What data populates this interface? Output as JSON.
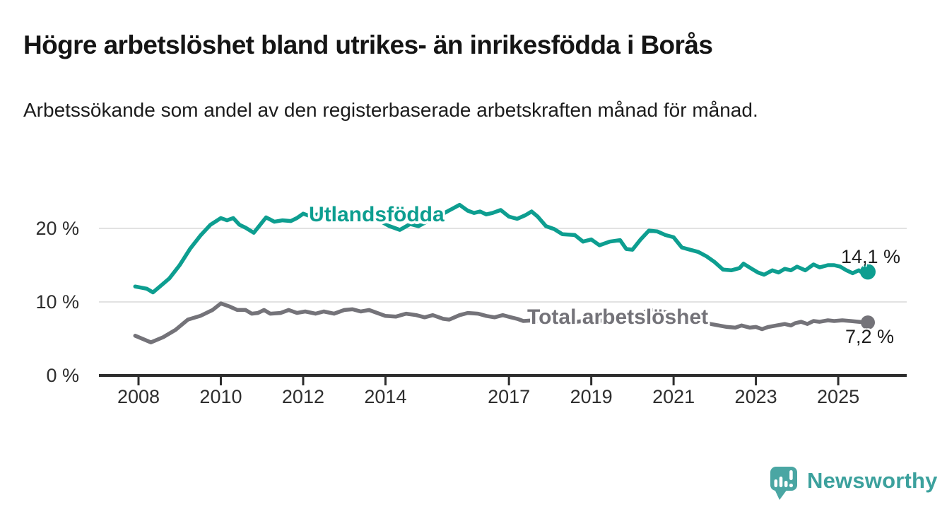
{
  "header": {
    "title": "Högre arbetslöshet bland utrikes- än inrikesfödda i Borås",
    "subtitle": "Arbetssökande som andel av den registerbaserade arbetskraften månad för månad."
  },
  "colors": {
    "utlandsfodda_line": "#0d9e90",
    "total_line": "#747379",
    "axis": "#2d2d2d",
    "grid": "#e2e2e2",
    "title_text": "#151515",
    "tick_text": "#2e2e2e",
    "logo_teal": "#4aa6a3",
    "brand_text": "#3ca19d"
  },
  "chart_data": {
    "type": "line",
    "title": "Högre arbetslöshet bland utrikes- än inrikesfödda i Borås",
    "subtitle": "Arbetssökande som andel av den registerbaserade arbetskraften månad för månad.",
    "unit": "%",
    "xlabel": "",
    "ylabel": "",
    "grid": "horizontal",
    "xlim": [
      2007.9,
      2026.6
    ],
    "ylim": [
      0,
      25
    ],
    "y_ticks": [
      {
        "value": 0,
        "label": "0 %"
      },
      {
        "value": 10,
        "label": "10 %"
      },
      {
        "value": 20,
        "label": "20 %"
      }
    ],
    "x_ticks": [
      {
        "value": 2008,
        "label": "2008"
      },
      {
        "value": 2010,
        "label": "2010"
      },
      {
        "value": 2012,
        "label": "2012"
      },
      {
        "value": 2014,
        "label": "2014"
      },
      {
        "value": 2017,
        "label": "2017"
      },
      {
        "value": 2019,
        "label": "2019"
      },
      {
        "value": 2021,
        "label": "2021"
      },
      {
        "value": 2023,
        "label": "2023"
      },
      {
        "value": 2025,
        "label": "2025"
      }
    ],
    "series": [
      {
        "name": "Utlandsfödda",
        "color": "#0d9e90",
        "end_value": 14.1,
        "end_label": "14,1 %",
        "points": [
          [
            2007.92,
            12.1
          ],
          [
            2008.2,
            11.8
          ],
          [
            2008.35,
            11.3
          ],
          [
            2008.5,
            12.0
          ],
          [
            2008.75,
            13.2
          ],
          [
            2009.0,
            15.0
          ],
          [
            2009.25,
            17.2
          ],
          [
            2009.5,
            19.0
          ],
          [
            2009.75,
            20.5
          ],
          [
            2010.0,
            21.4
          ],
          [
            2010.15,
            21.1
          ],
          [
            2010.3,
            21.4
          ],
          [
            2010.45,
            20.5
          ],
          [
            2010.6,
            20.1
          ],
          [
            2010.8,
            19.4
          ],
          [
            2011.0,
            20.8
          ],
          [
            2011.1,
            21.5
          ],
          [
            2011.3,
            20.9
          ],
          [
            2011.5,
            21.1
          ],
          [
            2011.7,
            21.0
          ],
          [
            2011.85,
            21.4
          ],
          [
            2012.0,
            22.0
          ],
          [
            2012.15,
            21.7
          ],
          [
            2012.35,
            21.9
          ],
          [
            2012.55,
            21.6
          ],
          [
            2012.75,
            21.9
          ],
          [
            2013.0,
            21.7
          ],
          [
            2013.3,
            21.5
          ],
          [
            2013.6,
            21.2
          ],
          [
            2013.9,
            20.9
          ],
          [
            2014.1,
            20.3
          ],
          [
            2014.35,
            19.8
          ],
          [
            2014.6,
            20.6
          ],
          [
            2014.8,
            20.3
          ],
          [
            2015.0,
            20.9
          ],
          [
            2015.2,
            21.3
          ],
          [
            2015.4,
            22.0
          ],
          [
            2015.6,
            22.6
          ],
          [
            2015.8,
            23.2
          ],
          [
            2016.0,
            22.4
          ],
          [
            2016.15,
            22.1
          ],
          [
            2016.3,
            22.3
          ],
          [
            2016.45,
            21.9
          ],
          [
            2016.6,
            22.1
          ],
          [
            2016.8,
            22.5
          ],
          [
            2017.0,
            21.6
          ],
          [
            2017.2,
            21.3
          ],
          [
            2017.4,
            21.8
          ],
          [
            2017.55,
            22.3
          ],
          [
            2017.7,
            21.6
          ],
          [
            2017.9,
            20.3
          ],
          [
            2018.1,
            19.9
          ],
          [
            2018.3,
            19.2
          ],
          [
            2018.6,
            19.1
          ],
          [
            2018.8,
            18.2
          ],
          [
            2019.0,
            18.5
          ],
          [
            2019.2,
            17.7
          ],
          [
            2019.45,
            18.2
          ],
          [
            2019.7,
            18.4
          ],
          [
            2019.85,
            17.2
          ],
          [
            2020.0,
            17.1
          ],
          [
            2020.2,
            18.5
          ],
          [
            2020.4,
            19.7
          ],
          [
            2020.6,
            19.6
          ],
          [
            2020.8,
            19.1
          ],
          [
            2021.0,
            18.8
          ],
          [
            2021.2,
            17.4
          ],
          [
            2021.4,
            17.1
          ],
          [
            2021.6,
            16.8
          ],
          [
            2021.8,
            16.2
          ],
          [
            2022.0,
            15.4
          ],
          [
            2022.2,
            14.4
          ],
          [
            2022.4,
            14.3
          ],
          [
            2022.6,
            14.6
          ],
          [
            2022.7,
            15.2
          ],
          [
            2022.9,
            14.5
          ],
          [
            2023.05,
            14.0
          ],
          [
            2023.2,
            13.7
          ],
          [
            2023.4,
            14.3
          ],
          [
            2023.55,
            14.0
          ],
          [
            2023.7,
            14.5
          ],
          [
            2023.85,
            14.3
          ],
          [
            2024.0,
            14.8
          ],
          [
            2024.2,
            14.3
          ],
          [
            2024.4,
            15.1
          ],
          [
            2024.55,
            14.7
          ],
          [
            2024.75,
            15.0
          ],
          [
            2024.9,
            15.0
          ],
          [
            2025.05,
            14.8
          ],
          [
            2025.2,
            14.3
          ],
          [
            2025.35,
            13.9
          ],
          [
            2025.5,
            14.3
          ],
          [
            2025.6,
            13.9
          ],
          [
            2025.72,
            14.1
          ]
        ]
      },
      {
        "name": "Total arbetslöshet",
        "color": "#747379",
        "end_value": 7.2,
        "end_label": "7,2 %",
        "points": [
          [
            2007.92,
            5.4
          ],
          [
            2008.3,
            4.5
          ],
          [
            2008.6,
            5.2
          ],
          [
            2008.9,
            6.2
          ],
          [
            2009.2,
            7.6
          ],
          [
            2009.5,
            8.1
          ],
          [
            2009.8,
            8.9
          ],
          [
            2010.0,
            9.8
          ],
          [
            2010.2,
            9.4
          ],
          [
            2010.4,
            8.9
          ],
          [
            2010.6,
            8.9
          ],
          [
            2010.75,
            8.4
          ],
          [
            2010.9,
            8.5
          ],
          [
            2011.05,
            8.9
          ],
          [
            2011.2,
            8.4
          ],
          [
            2011.45,
            8.5
          ],
          [
            2011.65,
            8.9
          ],
          [
            2011.85,
            8.5
          ],
          [
            2012.05,
            8.7
          ],
          [
            2012.3,
            8.4
          ],
          [
            2012.5,
            8.7
          ],
          [
            2012.75,
            8.4
          ],
          [
            2013.0,
            8.9
          ],
          [
            2013.2,
            9.0
          ],
          [
            2013.4,
            8.7
          ],
          [
            2013.6,
            8.9
          ],
          [
            2013.8,
            8.5
          ],
          [
            2014.0,
            8.1
          ],
          [
            2014.25,
            8.0
          ],
          [
            2014.5,
            8.4
          ],
          [
            2014.75,
            8.2
          ],
          [
            2014.95,
            7.9
          ],
          [
            2015.15,
            8.2
          ],
          [
            2015.4,
            7.7
          ],
          [
            2015.55,
            7.6
          ],
          [
            2015.8,
            8.2
          ],
          [
            2016.0,
            8.5
          ],
          [
            2016.25,
            8.4
          ],
          [
            2016.45,
            8.1
          ],
          [
            2016.65,
            7.9
          ],
          [
            2016.85,
            8.2
          ],
          [
            2017.05,
            7.9
          ],
          [
            2017.2,
            7.7
          ],
          [
            2017.35,
            7.4
          ],
          [
            2017.6,
            7.5
          ],
          [
            2017.9,
            7.3
          ],
          [
            2018.2,
            7.4
          ],
          [
            2018.5,
            7.2
          ],
          [
            2018.8,
            7.4
          ],
          [
            2019.1,
            7.5
          ],
          [
            2019.4,
            7.4
          ],
          [
            2019.7,
            7.2
          ],
          [
            2019.9,
            7.1
          ],
          [
            2020.1,
            7.8
          ],
          [
            2020.35,
            8.8
          ],
          [
            2020.55,
            8.9
          ],
          [
            2020.8,
            8.6
          ],
          [
            2021.0,
            8.4
          ],
          [
            2021.3,
            7.9
          ],
          [
            2021.6,
            7.4
          ],
          [
            2021.9,
            7.0
          ],
          [
            2022.1,
            6.8
          ],
          [
            2022.3,
            6.6
          ],
          [
            2022.5,
            6.5
          ],
          [
            2022.65,
            6.8
          ],
          [
            2022.85,
            6.5
          ],
          [
            2023.0,
            6.6
          ],
          [
            2023.15,
            6.3
          ],
          [
            2023.3,
            6.6
          ],
          [
            2023.5,
            6.8
          ],
          [
            2023.7,
            7.0
          ],
          [
            2023.85,
            6.8
          ],
          [
            2023.95,
            7.1
          ],
          [
            2024.1,
            7.3
          ],
          [
            2024.25,
            7.0
          ],
          [
            2024.4,
            7.4
          ],
          [
            2024.55,
            7.3
          ],
          [
            2024.75,
            7.5
          ],
          [
            2024.9,
            7.4
          ],
          [
            2025.1,
            7.5
          ],
          [
            2025.3,
            7.4
          ],
          [
            2025.5,
            7.3
          ],
          [
            2025.72,
            7.2
          ]
        ]
      }
    ]
  },
  "footer": {
    "brand": "Newsworthy"
  }
}
